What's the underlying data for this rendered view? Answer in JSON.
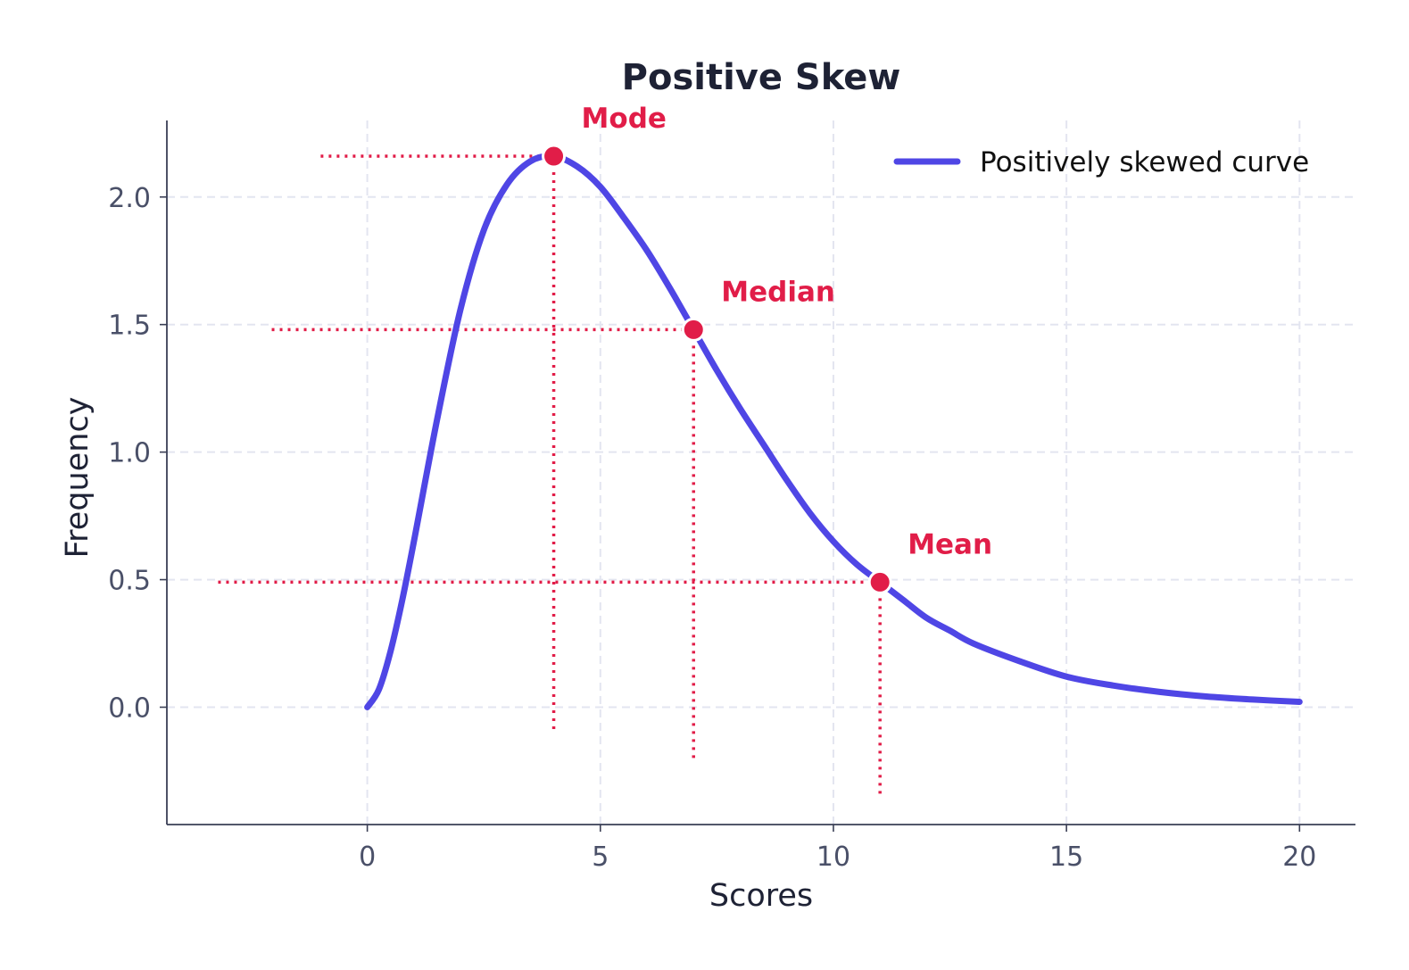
{
  "chart_data": {
    "type": "line",
    "title": "Positive Skew",
    "xlabel": "Scores",
    "ylabel": "Frequency",
    "xlim": [
      -4.3,
      21.2
    ],
    "ylim": [
      -0.46,
      2.3
    ],
    "x_ticks": [
      0,
      5,
      10,
      15,
      20
    ],
    "y_ticks": [
      0.0,
      0.5,
      1.0,
      1.5,
      2.0
    ],
    "x_tick_labels": [
      "0",
      "5",
      "10",
      "15",
      "20"
    ],
    "y_tick_labels": [
      "0.0",
      "0.5",
      "1.0",
      "1.5",
      "2.0"
    ],
    "grid": true,
    "legend_position": "top-right",
    "series": [
      {
        "name": "Positively skewed curve",
        "color": "#4f46e5",
        "x": [
          0,
          0.25,
          0.5,
          0.75,
          1,
          1.5,
          2,
          2.5,
          3,
          3.5,
          4,
          4.5,
          5,
          5.5,
          6,
          6.5,
          7,
          7.5,
          8,
          8.5,
          9,
          9.5,
          10,
          10.5,
          11,
          11.5,
          12,
          12.5,
          13,
          14,
          15,
          16,
          17,
          18,
          19,
          20
        ],
        "y": [
          0.0,
          0.07,
          0.22,
          0.42,
          0.65,
          1.13,
          1.56,
          1.87,
          2.05,
          2.14,
          2.16,
          2.12,
          2.04,
          1.92,
          1.79,
          1.64,
          1.48,
          1.32,
          1.17,
          1.03,
          0.89,
          0.76,
          0.65,
          0.56,
          0.49,
          0.42,
          0.35,
          0.3,
          0.25,
          0.18,
          0.12,
          0.085,
          0.06,
          0.042,
          0.03,
          0.021
        ]
      }
    ],
    "annotations": [
      {
        "label": "Mode",
        "x": 4,
        "y": 2.16,
        "vline_bottom": -0.1,
        "hline_left": -1.0
      },
      {
        "label": "Median",
        "x": 7,
        "y": 1.48,
        "vline_bottom": -0.22,
        "hline_left": -2.05
      },
      {
        "label": "Mean",
        "x": 11,
        "y": 0.49,
        "vline_bottom": -0.34,
        "hline_left": -3.2
      }
    ],
    "annotation_color": "#e11d48"
  }
}
